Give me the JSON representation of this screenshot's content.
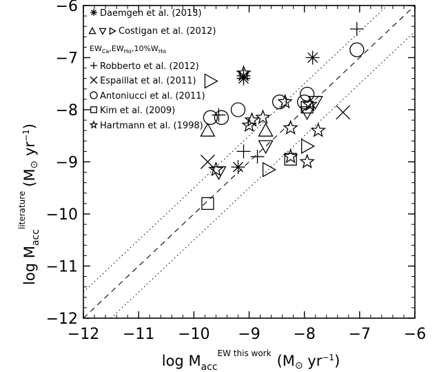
{
  "chart_data": {
    "type": "scatter",
    "title": "",
    "xlabel": {
      "prefix": "log ",
      "quantity": "M",
      "subscript": "acc",
      "superscript": "EW this work",
      "unit": "(M",
      "unit_tail": " yr",
      "unit_exp": "−1",
      "unit_close": ")"
    },
    "ylabel": {
      "prefix": "log ",
      "quantity": "M",
      "subscript": "acc",
      "superscript": "literature",
      "unit": "(M",
      "unit_tail": " yr",
      "unit_exp": "−1",
      "unit_close": ")"
    },
    "xlim": [
      -12,
      -6
    ],
    "ylim": [
      -12,
      -6
    ],
    "x_ticks": [
      -12,
      -11,
      -10,
      -9,
      -8,
      -7,
      -6
    ],
    "y_ticks": [
      -12,
      -11,
      -10,
      -9,
      -8,
      -7,
      -6
    ],
    "x_tick_labels": [
      "−12",
      "−11",
      "−10",
      "−9",
      "−8",
      "−7",
      "−6"
    ],
    "y_tick_labels": [
      "−12",
      "−11",
      "−10",
      "−9",
      "−8",
      "−7",
      "−6"
    ],
    "grid": false,
    "legend_position": "top-left",
    "reference_lines": [
      {
        "style": "dashed",
        "relation": "y = x"
      },
      {
        "style": "dotted",
        "relation": "y = x + 0.5"
      },
      {
        "style": "dotted",
        "relation": "y = x - 0.5"
      }
    ],
    "series": [
      {
        "name": "Daemgen et al. (2013)",
        "marker": "asterisk",
        "points": [
          [
            -7.85,
            -7.0
          ],
          [
            -9.1,
            -7.35
          ],
          [
            -9.1,
            -7.4
          ],
          [
            -9.2,
            -9.1
          ]
        ]
      },
      {
        "name": "Costigan et al. (2012)",
        "marker": "triangle-up",
        "points": [
          [
            -9.75,
            -8.4
          ],
          [
            -8.7,
            -8.4
          ]
        ]
      },
      {
        "name": "Costigan et al. (2012)",
        "marker": "triangle-down",
        "points": [
          [
            -8.7,
            -8.7
          ],
          [
            -9.55,
            -9.2
          ],
          [
            -7.8,
            -7.85
          ],
          [
            -7.95,
            -8.05
          ]
        ]
      },
      {
        "name": "Costigan et al. (2012)",
        "marker": "triangle-right",
        "points": [
          [
            -9.7,
            -7.45
          ],
          [
            -8.65,
            -9.15
          ],
          [
            -7.95,
            -8.7
          ]
        ]
      },
      {
        "name": "Robberto et al. (2012)",
        "marker": "plus",
        "points": [
          [
            -7.05,
            -6.45
          ],
          [
            -9.55,
            -8.1
          ],
          [
            -9.1,
            -8.8
          ],
          [
            -8.85,
            -8.9
          ]
        ]
      },
      {
        "name": "Espaillat et al. (2011)",
        "marker": "cross",
        "points": [
          [
            -7.3,
            -8.05
          ],
          [
            -9.75,
            -9.0
          ]
        ]
      },
      {
        "name": "Antoniucci et al. (2011)",
        "marker": "circle",
        "points": [
          [
            -7.05,
            -6.85
          ],
          [
            -8.45,
            -7.85
          ],
          [
            -7.95,
            -7.7
          ],
          [
            -8.0,
            -7.85
          ],
          [
            -9.2,
            -8.0
          ],
          [
            -9.7,
            -8.15
          ],
          [
            -9.5,
            -8.15
          ]
        ]
      },
      {
        "name": "Kim et al. (2009)",
        "marker": "square",
        "points": [
          [
            -9.75,
            -9.8
          ],
          [
            -8.25,
            -8.95
          ],
          [
            -7.95,
            -7.95
          ]
        ]
      },
      {
        "name": "Hartmann et al. (1998)",
        "marker": "star",
        "points": [
          [
            -9.1,
            -7.3
          ],
          [
            -8.35,
            -7.85
          ],
          [
            -7.9,
            -7.9
          ],
          [
            -8.75,
            -8.15
          ],
          [
            -8.95,
            -8.2
          ],
          [
            -9.0,
            -8.3
          ],
          [
            -8.25,
            -8.35
          ],
          [
            -7.75,
            -8.4
          ],
          [
            -9.6,
            -9.15
          ],
          [
            -8.25,
            -8.9
          ],
          [
            -7.95,
            -9.0
          ]
        ]
      }
    ],
    "legend": {
      "entries": [
        {
          "marker": "asterisk",
          "label": "Daemgen et al. (2013)"
        },
        {
          "marker": "triangle-group",
          "label": "Costigan et al. (2012)"
        },
        {
          "marker": "none",
          "label": "EW",
          "sub1": "Ca",
          "mid": ",EW",
          "sub2": "Hα",
          "tail": ",10%W",
          "sub3": "Hα"
        },
        {
          "marker": "plus",
          "label": "Robberto et al. (2012)"
        },
        {
          "marker": "cross",
          "label": "Espaillat et al. (2011)"
        },
        {
          "marker": "circle",
          "label": "Antoniucci et al. (2011)"
        },
        {
          "marker": "square",
          "label": "Kim et al. (2009)"
        },
        {
          "marker": "star",
          "label": "Hartmann et al. (1998)"
        }
      ]
    }
  }
}
